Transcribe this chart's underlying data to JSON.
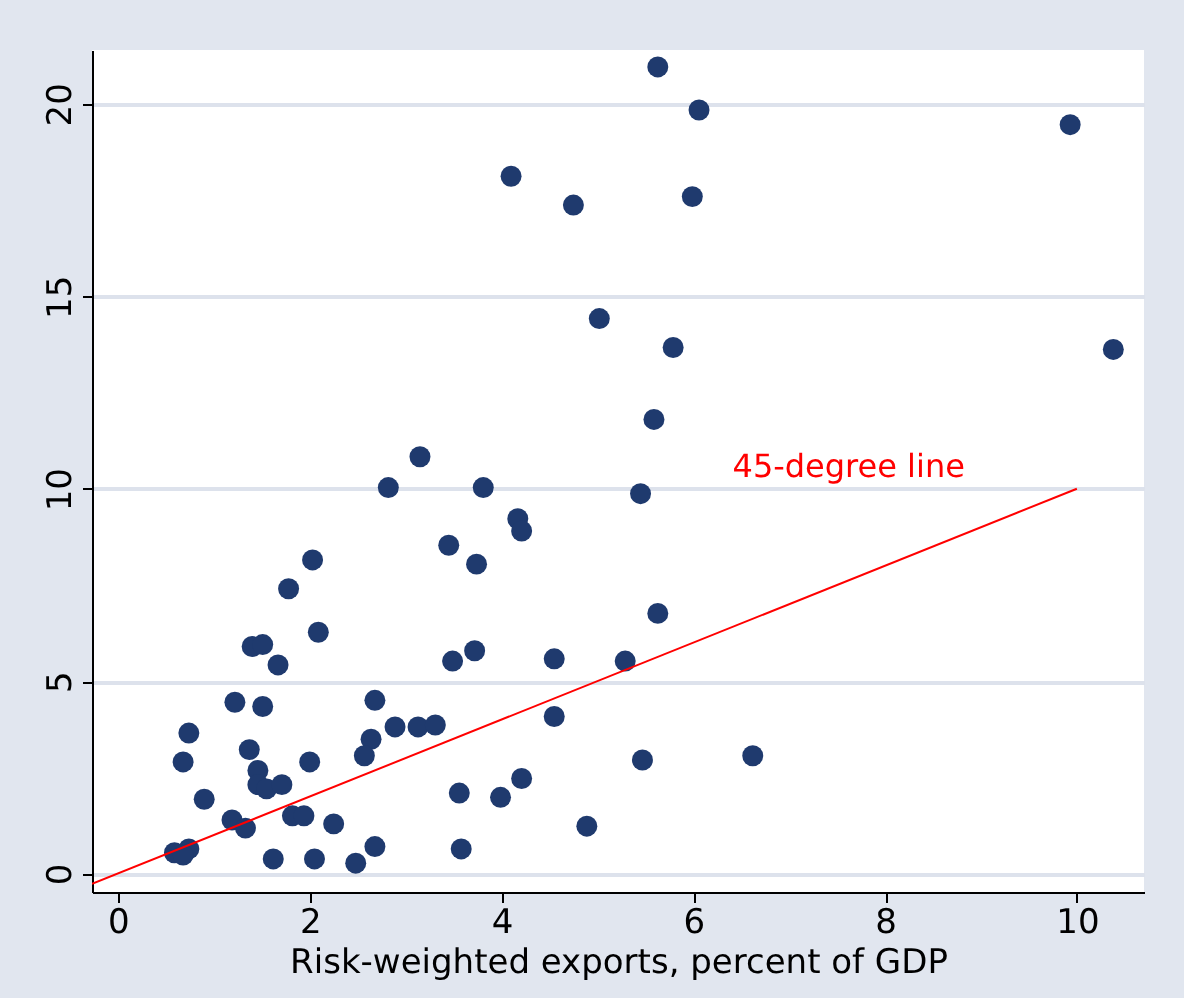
{
  "chart_data": {
    "type": "scatter",
    "xlabel": "Risk-weighted exports, percent of GDP",
    "xlim": [
      -0.27,
      10.7
    ],
    "ylim": [
      -0.48,
      21.4
    ],
    "xticks": [
      0,
      2,
      4,
      6,
      8,
      10
    ],
    "yticks": [
      0,
      5,
      10,
      15,
      20
    ],
    "grid": "y",
    "legend": false,
    "series": [
      {
        "marker": "circle",
        "color": "#1f3a6e",
        "x": [
          5.63,
          6.06,
          9.93,
          4.1,
          4.75,
          5.99,
          5.02,
          5.79,
          10.38,
          3.15,
          2.82,
          3.81,
          5.59,
          4.17,
          4.21,
          5.45,
          2.03,
          3.45,
          3.74,
          1.78,
          2.09,
          1.4,
          1.51,
          1.67,
          3.49,
          3.72,
          4.55,
          5.29,
          5.63,
          1.22,
          1.51,
          2.68,
          0.74,
          2.64,
          2.89,
          3.13,
          3.31,
          4.55,
          0.68,
          1.37,
          1.46,
          2.0,
          2.57,
          1.46,
          1.55,
          1.71,
          0.9,
          3.56,
          3.99,
          4.21,
          1.19,
          1.33,
          1.82,
          1.94,
          2.25,
          4.89,
          5.47,
          6.62,
          0.59,
          0.74,
          0.68,
          1.62,
          2.05,
          2.68,
          2.48,
          3.58
        ],
        "values": [
          20.96,
          19.84,
          19.46,
          18.12,
          17.37,
          17.59,
          14.42,
          13.67,
          13.62,
          10.83,
          10.03,
          10.03,
          11.8,
          9.22,
          8.9,
          9.87,
          8.15,
          8.53,
          8.04,
          7.4,
          6.27,
          5.9,
          5.95,
          5.42,
          5.52,
          5.79,
          5.58,
          5.52,
          6.76,
          4.45,
          4.34,
          4.5,
          3.65,
          3.49,
          3.81,
          3.81,
          3.86,
          4.08,
          2.9,
          3.22,
          2.68,
          2.9,
          3.06,
          2.31,
          2.2,
          2.31,
          1.93,
          2.09,
          1.98,
          2.47,
          1.39,
          1.18,
          1.5,
          1.5,
          1.29,
          1.23,
          2.95,
          3.06,
          0.54,
          0.64,
          0.48,
          0.38,
          0.38,
          0.7,
          0.27,
          0.64
        ]
      },
      {
        "type": "line",
        "marker": "none",
        "name": "45-degree line",
        "color": "#ff0000",
        "x": [
          -0.27,
          10
        ],
        "values": [
          -0.27,
          10
        ]
      }
    ]
  }
}
